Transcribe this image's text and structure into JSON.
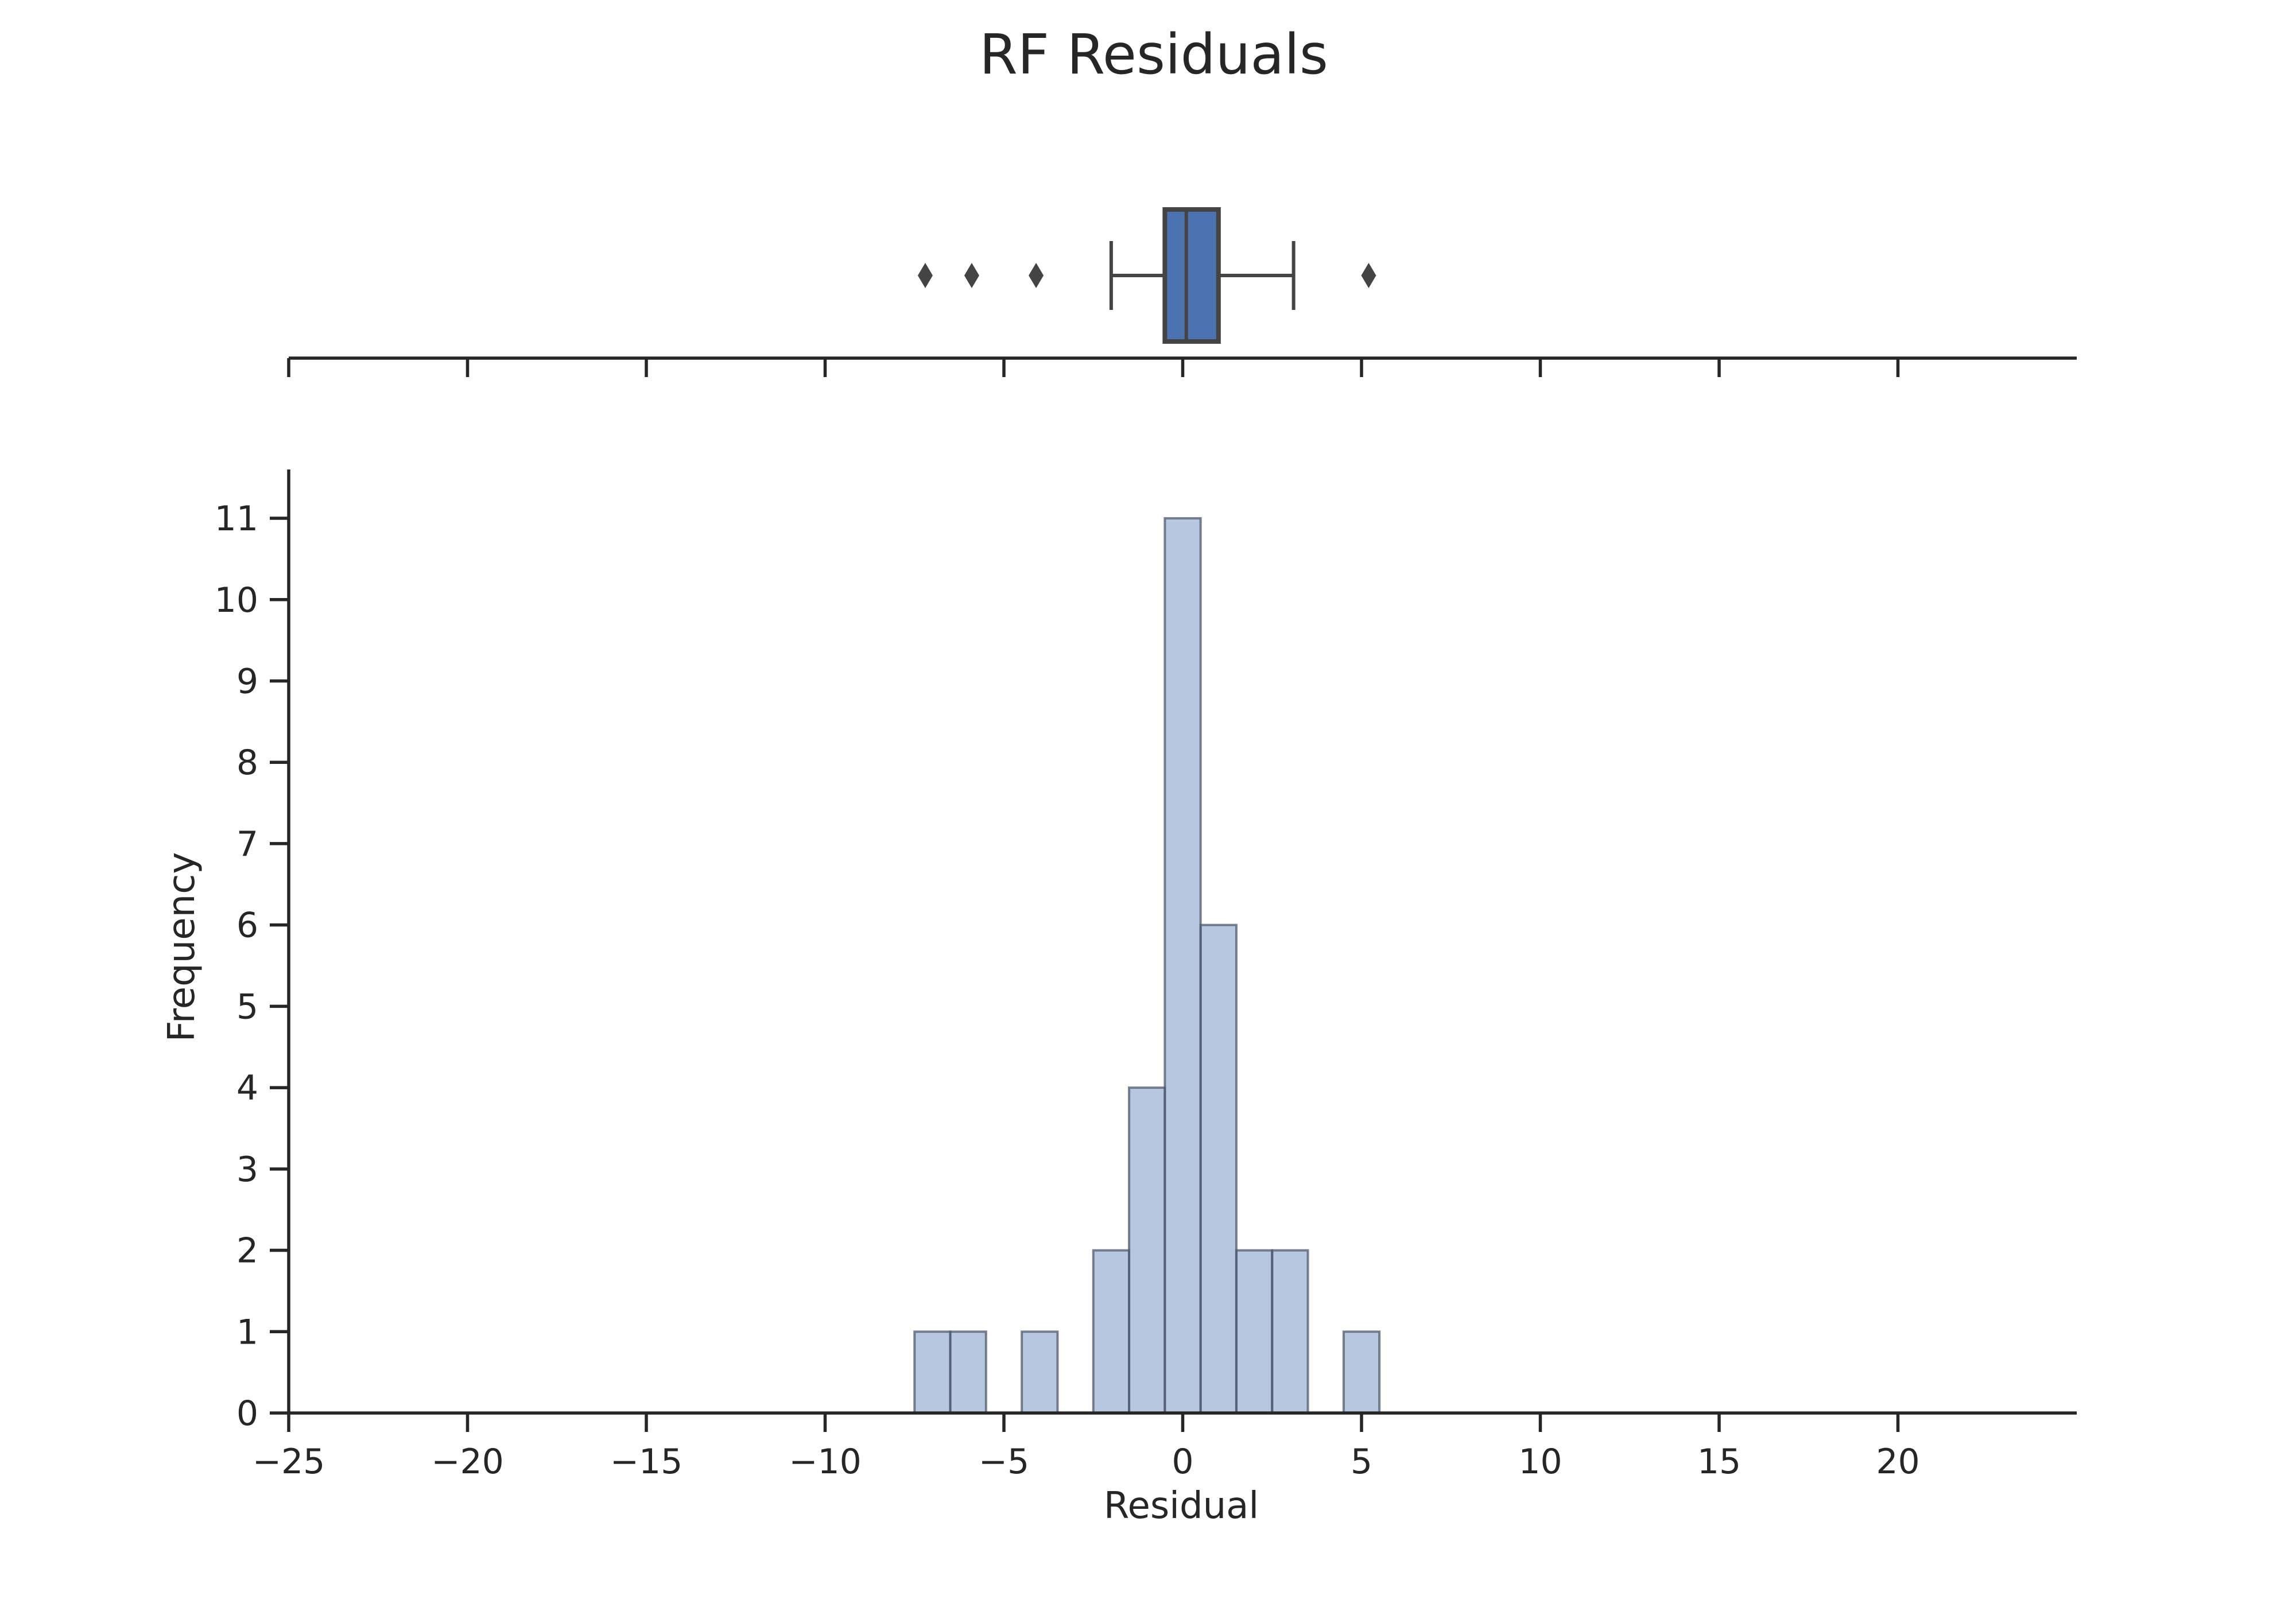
{
  "chart_data": [
    {
      "type": "boxplot",
      "title": "RF Residuals",
      "box": {
        "q1": -0.5,
        "median": 0.1,
        "q3": 1.0,
        "whisker_low": -2.0,
        "whisker_high": 3.1
      },
      "fliers": [
        -7.2,
        -5.9,
        -4.1,
        5.2
      ],
      "color": "#4c72b0",
      "xlim": [
        -25,
        25
      ],
      "x_ticks": [
        -25,
        -20,
        -15,
        -10,
        -5,
        0,
        5,
        10,
        15,
        20
      ]
    },
    {
      "type": "histogram",
      "xlabel": "Residual",
      "ylabel": "Frequency",
      "xlim": [
        -25,
        25
      ],
      "ylim": [
        0,
        11.6
      ],
      "x_ticks": [
        -25,
        -20,
        -15,
        -10,
        -5,
        0,
        5,
        10,
        15,
        20
      ],
      "x_tick_labels": [
        "−25",
        "−20",
        "−15",
        "−10",
        "−5",
        "0",
        "5",
        "10",
        "15",
        "20"
      ],
      "y_ticks": [
        0,
        1,
        2,
        3,
        4,
        5,
        6,
        7,
        8,
        9,
        10,
        11
      ],
      "y_tick_labels": [
        "0",
        "1",
        "2",
        "3",
        "4",
        "5",
        "6",
        "7",
        "8",
        "9",
        "10",
        "11"
      ],
      "bin_width": 1.0,
      "bins": [
        {
          "start": -7.5,
          "end": -6.5,
          "count": 1
        },
        {
          "start": -6.5,
          "end": -5.5,
          "count": 1
        },
        {
          "start": -5.5,
          "end": -4.5,
          "count": 0
        },
        {
          "start": -4.5,
          "end": -3.5,
          "count": 1
        },
        {
          "start": -3.5,
          "end": -2.5,
          "count": 0
        },
        {
          "start": -2.5,
          "end": -1.5,
          "count": 2
        },
        {
          "start": -1.5,
          "end": -0.5,
          "count": 4
        },
        {
          "start": -0.5,
          "end": 0.5,
          "count": 11
        },
        {
          "start": 0.5,
          "end": 1.5,
          "count": 6
        },
        {
          "start": 1.5,
          "end": 2.5,
          "count": 2
        },
        {
          "start": 2.5,
          "end": 3.5,
          "count": 2
        },
        {
          "start": 3.5,
          "end": 4.5,
          "count": 0
        },
        {
          "start": 4.5,
          "end": 5.5,
          "count": 1
        }
      ],
      "bar_color": "#4c72b0",
      "bar_opacity": 0.4,
      "grid": false
    }
  ]
}
